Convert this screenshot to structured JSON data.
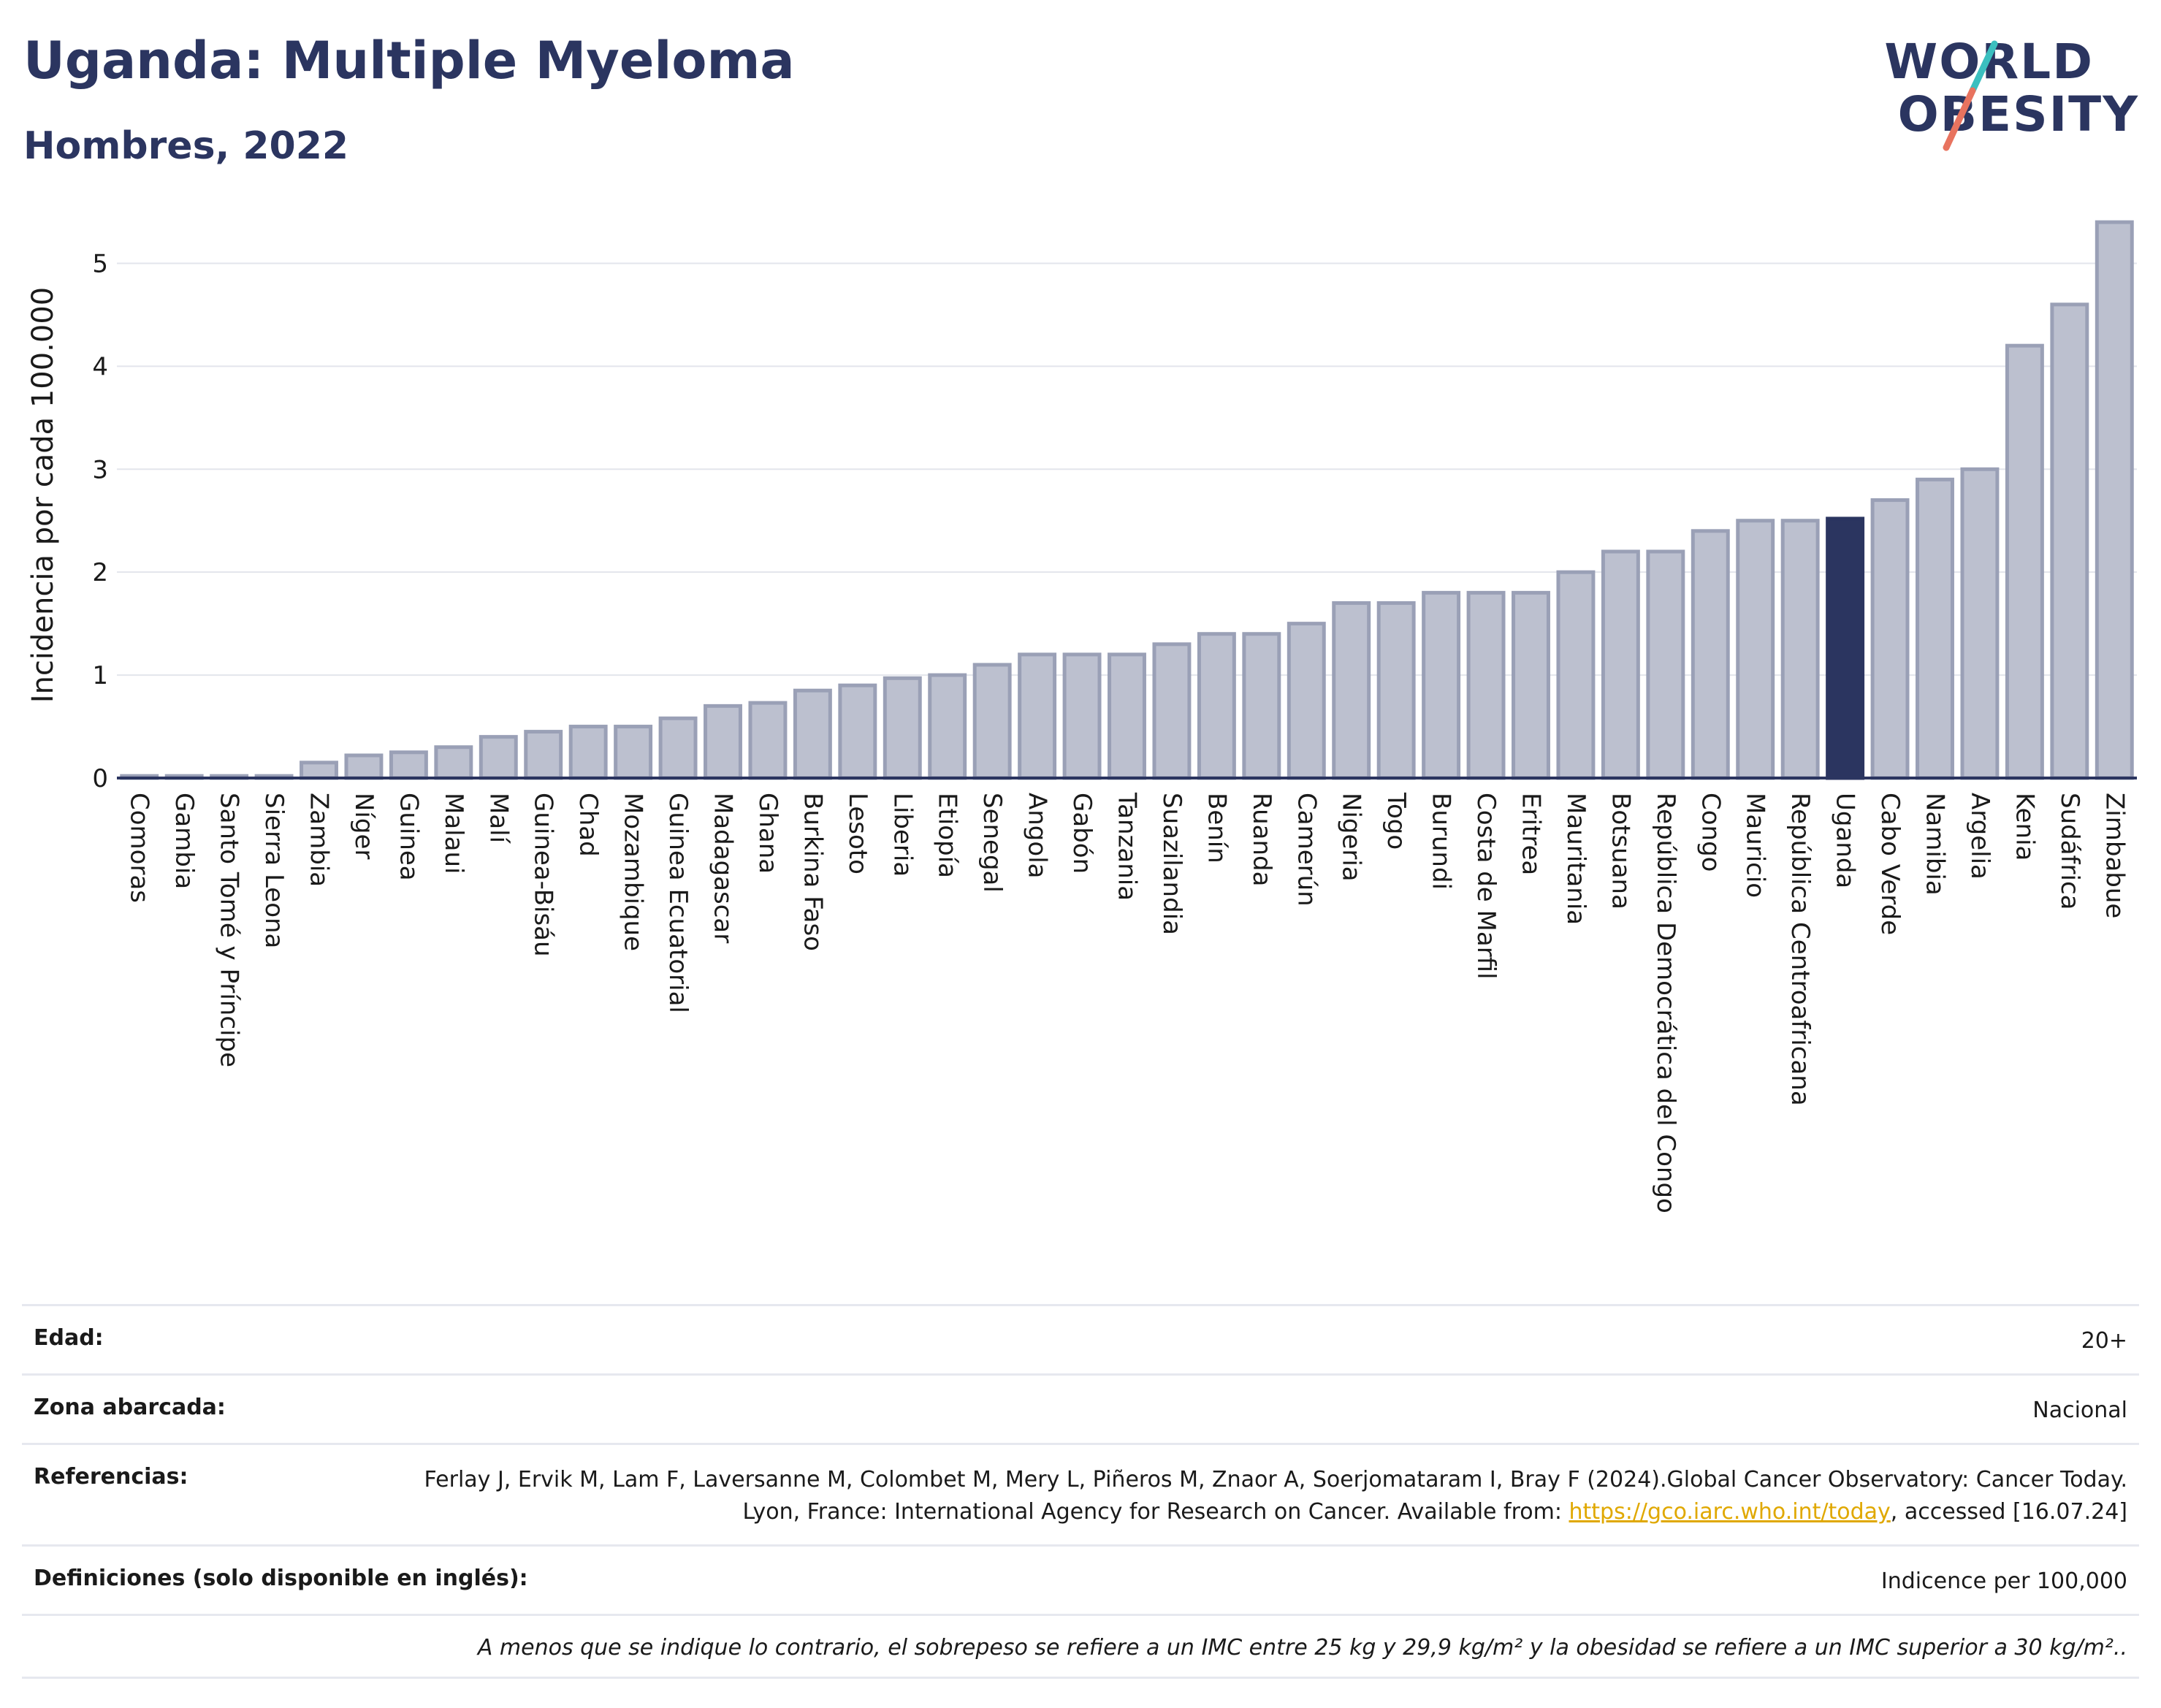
{
  "header": {
    "title": "Uganda: Multiple Myeloma",
    "subtitle": "Hombres, 2022",
    "logo_line1": "WORLD",
    "logo_line2": "OBESITY"
  },
  "colors": {
    "bar_fill": "#bcc0cf",
    "bar_stroke": "#9aa0b6",
    "highlight": "#2b3560",
    "grid": "#e3e5ec",
    "axis": "#2b3560",
    "logo_slash_teal": "#3bbfbf",
    "logo_slash_red": "#e8735f"
  },
  "chart_data": {
    "type": "bar",
    "ylabel": "Incidencia por cada 100.000",
    "ylim": [
      0,
      5.5
    ],
    "yticks": [
      0,
      1,
      2,
      3,
      4,
      5
    ],
    "grid": true,
    "highlight": "Uganda",
    "categories": [
      "Comoras",
      "Gambia",
      "Santo Tomé y Príncipe",
      "Sierra Leona",
      "Zambia",
      "Níger",
      "Guinea",
      "Malaui",
      "Malí",
      "Guinea-Bisáu",
      "Chad",
      "Mozambique",
      "Guinea Ecuatorial",
      "Madagascar",
      "Ghana",
      "Burkina Faso",
      "Lesoto",
      "Liberia",
      "Etiopía",
      "Senegal",
      "Angola",
      "Gabón",
      "Tanzania",
      "Suazilandia",
      "Benín",
      "Ruanda",
      "Camerún",
      "Nigeria",
      "Togo",
      "Burundi",
      "Costa de Marfil",
      "Eritrea",
      "Mauritania",
      "Botsuana",
      "República Democrática del Congo",
      "Congo",
      "Mauricio",
      "República Centroafricana",
      "Uganda",
      "Cabo Verde",
      "Namibia",
      "Argelia",
      "Kenia",
      "Sudáfrica",
      "Zimbabue"
    ],
    "values": [
      0.02,
      0.02,
      0.02,
      0.02,
      0.15,
      0.22,
      0.25,
      0.3,
      0.4,
      0.45,
      0.5,
      0.5,
      0.58,
      0.7,
      0.73,
      0.85,
      0.9,
      0.97,
      1.0,
      1.1,
      1.2,
      1.2,
      1.2,
      1.3,
      1.4,
      1.4,
      1.5,
      1.7,
      1.7,
      1.8,
      1.8,
      1.8,
      2.0,
      2.2,
      2.2,
      2.4,
      2.5,
      2.5,
      2.52,
      2.7,
      2.9,
      3.0,
      4.2,
      4.6,
      5.4
    ]
  },
  "info": {
    "age_label": "Edad:",
    "age_value": "20+",
    "area_label": "Zona abarcada:",
    "area_value": "Nacional",
    "refs_label": "Referencias:",
    "refs_text": "Ferlay J, Ervik M, Lam F, Laversanne M, Colombet M, Mery L, Piñeros M, Znaor A, Soerjomataram I, Bray F (2024).Global Cancer Observatory: Cancer Today. Lyon, France: International Agency for Research on Cancer. Available from:",
    "refs_link": "https://gco.iarc.who.int/today",
    "refs_tail": ", accessed [16.07.24]",
    "defs_label": "Definiciones (solo disponible en inglés):",
    "defs_value": "Indicence per 100,000",
    "note": "A menos que se indique lo contrario, el sobrepeso se refiere a un IMC entre 25 kg y 29,9 kg/m² y la obesidad se refiere a un IMC superior a 30 kg/m².."
  }
}
